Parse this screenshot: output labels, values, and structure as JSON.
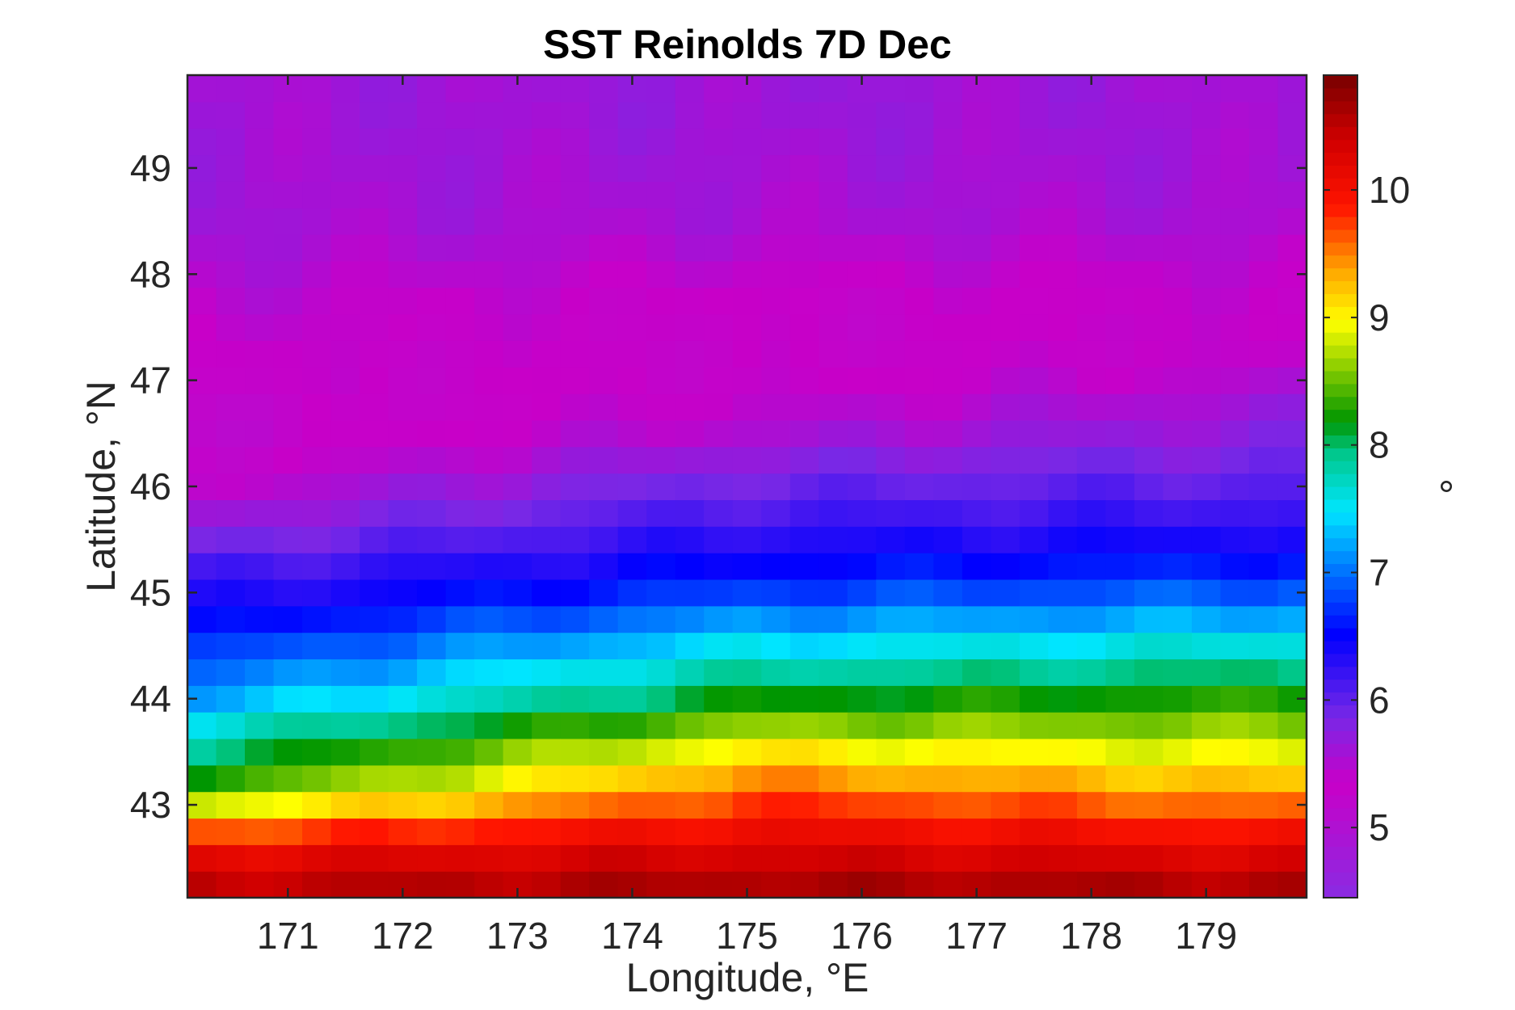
{
  "chart_data": {
    "type": "heatmap",
    "title": "SST Reinolds 7D Dec",
    "xlabel": "Longitude, °E",
    "ylabel": "Latitude, °N",
    "colorbar_label": "°",
    "xlim": [
      170.125,
      179.875
    ],
    "ylim": [
      42.125,
      49.875
    ],
    "xticks": [
      "171",
      "172",
      "173",
      "174",
      "175",
      "176",
      "177",
      "178",
      "179"
    ],
    "yticks": [
      "43",
      "44",
      "45",
      "46",
      "47",
      "48",
      "49"
    ],
    "colorbar_ticks": [
      "5",
      "6",
      "7",
      "8",
      "9",
      "10"
    ],
    "clim": [
      4.45,
      10.9
    ],
    "colormap": "jet-like: violet → blue → cyan → green → yellow → red → dark red",
    "grid": false,
    "cell_deg": 0.25,
    "column_lon_start": 170.125,
    "row_lat_start": 42.125,
    "profile_lat": [
      42.125,
      42.4,
      42.65,
      42.9,
      43.15,
      43.4,
      43.65,
      43.9,
      44.15,
      44.4,
      44.65,
      44.9,
      45.15,
      45.4,
      45.65,
      45.9,
      46.15,
      46.4,
      46.65,
      46.9,
      47.15,
      47.4,
      47.65,
      47.9,
      48.15,
      48.5,
      49.0,
      49.5,
      49.875
    ],
    "profile_west_sst": [
      10.6,
      10.3,
      10.0,
      9.1,
      8.4,
      8.0,
      7.8,
      7.3,
      7.0,
      6.8,
      6.55,
      6.3,
      6.2,
      5.9,
      5.7,
      5.5,
      5.3,
      5.2,
      5.2,
      5.3,
      5.35,
      5.4,
      5.45,
      5.5,
      5.55,
      5.6,
      5.6,
      5.6,
      5.6
    ],
    "profile_central_sst": [
      10.7,
      10.5,
      10.2,
      9.9,
      9.6,
      9.2,
      8.8,
      8.3,
      8.0,
      7.6,
      7.3,
      6.9,
      6.6,
      6.4,
      6.2,
      6.0,
      5.85,
      5.6,
      5.45,
      5.35,
      5.3,
      5.3,
      5.3,
      5.35,
      5.45,
      5.55,
      5.6,
      5.65,
      5.65
    ],
    "profile_east_sst": [
      10.7,
      10.4,
      10.1,
      9.7,
      9.3,
      9.0,
      8.7,
      8.4,
      8.1,
      7.8,
      7.4,
      7.05,
      6.75,
      6.5,
      6.3,
      6.1,
      5.95,
      5.8,
      5.7,
      5.55,
      5.4,
      5.35,
      5.35,
      5.4,
      5.45,
      5.55,
      5.6,
      5.6,
      5.6
    ]
  }
}
